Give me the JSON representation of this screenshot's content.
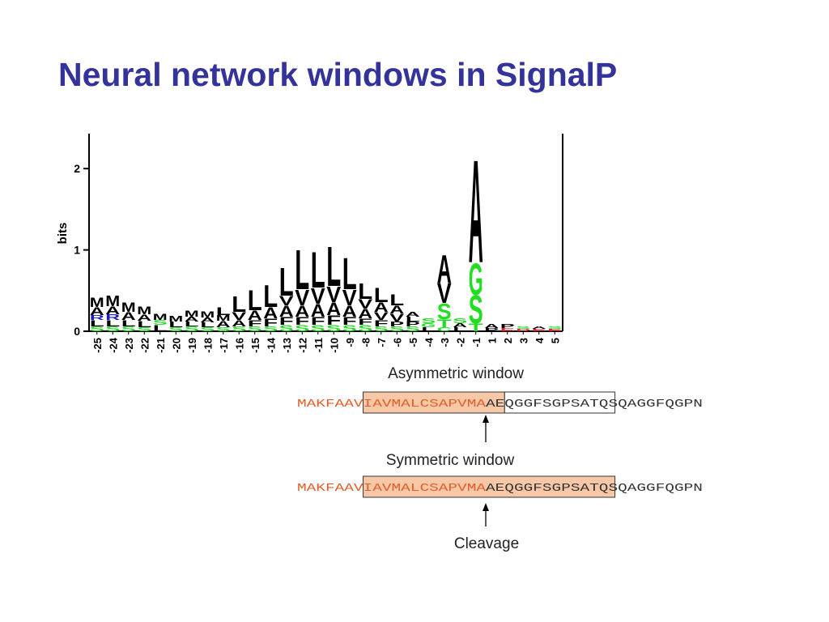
{
  "slide": {
    "title": "Neural network windows in SignalP",
    "asymmetric_label": "Asymmetric window",
    "symmetric_label": "Symmetric window",
    "cleavage_label": "Cleavage",
    "signal_seq": "MAKFAAVIAVMALCSAPVMA",
    "mature_seq": "AEQGGFSGPSATQSQAGGFQGPN"
  },
  "chart_data": {
    "type": "logo",
    "ylabel": "bits",
    "ylim": [
      0,
      2.43
    ],
    "yticks": [
      0,
      1,
      2
    ],
    "colors": {
      "A": "#000000",
      "L": "#000000",
      "M": "#000000",
      "V": "#000000",
      "F": "#000000",
      "P": "#000000",
      "S": "#22dd22",
      "T": "#22dd22",
      "G": "#22dd22",
      "C": "#22dd22",
      "R": "#1a1acc",
      "E": "#dd2222",
      "D": "#dd2222"
    },
    "stacks": [
      {
        "position": "-25",
        "letters": [
          {
            "letter": "S",
            "height": 0.06
          },
          {
            "letter": "L",
            "height": 0.08
          },
          {
            "letter": "R",
            "height": 0.06
          },
          {
            "letter": "A",
            "height": 0.1
          },
          {
            "letter": "M",
            "height": 0.12
          }
        ]
      },
      {
        "position": "-24",
        "letters": [
          {
            "letter": "S",
            "height": 0.06
          },
          {
            "letter": "L",
            "height": 0.08
          },
          {
            "letter": "R",
            "height": 0.07
          },
          {
            "letter": "A",
            "height": 0.1
          },
          {
            "letter": "M",
            "height": 0.13
          }
        ]
      },
      {
        "position": "-23",
        "letters": [
          {
            "letter": "S",
            "height": 0.06
          },
          {
            "letter": "L",
            "height": 0.08
          },
          {
            "letter": "A",
            "height": 0.1
          },
          {
            "letter": "M",
            "height": 0.12
          }
        ]
      },
      {
        "position": "-22",
        "letters": [
          {
            "letter": "S",
            "height": 0.05
          },
          {
            "letter": "L",
            "height": 0.08
          },
          {
            "letter": "A",
            "height": 0.08
          },
          {
            "letter": "M",
            "height": 0.1
          }
        ]
      },
      {
        "position": "-21",
        "letters": [
          {
            "letter": "L",
            "height": 0.08
          },
          {
            "letter": "S",
            "height": 0.06
          },
          {
            "letter": "M",
            "height": 0.08
          }
        ]
      },
      {
        "position": "-20",
        "letters": [
          {
            "letter": "S",
            "height": 0.05
          },
          {
            "letter": "L",
            "height": 0.07
          },
          {
            "letter": "M",
            "height": 0.07
          }
        ]
      },
      {
        "position": "-19",
        "letters": [
          {
            "letter": "S",
            "height": 0.06
          },
          {
            "letter": "L",
            "height": 0.06
          },
          {
            "letter": "A",
            "height": 0.06
          },
          {
            "letter": "M",
            "height": 0.08
          }
        ]
      },
      {
        "position": "-18",
        "letters": [
          {
            "letter": "S",
            "height": 0.05
          },
          {
            "letter": "L",
            "height": 0.06
          },
          {
            "letter": "A",
            "height": 0.06
          },
          {
            "letter": "M",
            "height": 0.08
          }
        ]
      },
      {
        "position": "-17",
        "letters": [
          {
            "letter": "S",
            "height": 0.05
          },
          {
            "letter": "A",
            "height": 0.08
          },
          {
            "letter": "M",
            "height": 0.07
          },
          {
            "letter": "L",
            "height": 0.1
          }
        ]
      },
      {
        "position": "-16",
        "letters": [
          {
            "letter": "S",
            "height": 0.06
          },
          {
            "letter": "A",
            "height": 0.08
          },
          {
            "letter": "V",
            "height": 0.1
          },
          {
            "letter": "L",
            "height": 0.2
          }
        ]
      },
      {
        "position": "-15",
        "letters": [
          {
            "letter": "S",
            "height": 0.06
          },
          {
            "letter": "F",
            "height": 0.08
          },
          {
            "letter": "A",
            "height": 0.12
          },
          {
            "letter": "L",
            "height": 0.25
          }
        ]
      },
      {
        "position": "-14",
        "letters": [
          {
            "letter": "S",
            "height": 0.06
          },
          {
            "letter": "F",
            "height": 0.1
          },
          {
            "letter": "A",
            "height": 0.14
          },
          {
            "letter": "L",
            "height": 0.28
          }
        ]
      },
      {
        "position": "-13",
        "letters": [
          {
            "letter": "S",
            "height": 0.08
          },
          {
            "letter": "F",
            "height": 0.1
          },
          {
            "letter": "A",
            "height": 0.14
          },
          {
            "letter": "V",
            "height": 0.12
          },
          {
            "letter": "L",
            "height": 0.35
          }
        ]
      },
      {
        "position": "-12",
        "letters": [
          {
            "letter": "S",
            "height": 0.08
          },
          {
            "letter": "F",
            "height": 0.1
          },
          {
            "letter": "A",
            "height": 0.14
          },
          {
            "letter": "V",
            "height": 0.2
          },
          {
            "letter": "L",
            "height": 0.5
          }
        ]
      },
      {
        "position": "-11",
        "letters": [
          {
            "letter": "S",
            "height": 0.08
          },
          {
            "letter": "F",
            "height": 0.1
          },
          {
            "letter": "A",
            "height": 0.16
          },
          {
            "letter": "V",
            "height": 0.2
          },
          {
            "letter": "L",
            "height": 0.45
          }
        ]
      },
      {
        "position": "-10",
        "letters": [
          {
            "letter": "S",
            "height": 0.08
          },
          {
            "letter": "F",
            "height": 0.12
          },
          {
            "letter": "A",
            "height": 0.16
          },
          {
            "letter": "V",
            "height": 0.2
          },
          {
            "letter": "L",
            "height": 0.5
          }
        ]
      },
      {
        "position": "-9",
        "letters": [
          {
            "letter": "S",
            "height": 0.08
          },
          {
            "letter": "F",
            "height": 0.1
          },
          {
            "letter": "A",
            "height": 0.14
          },
          {
            "letter": "V",
            "height": 0.2
          },
          {
            "letter": "L",
            "height": 0.4
          }
        ]
      },
      {
        "position": "-8",
        "letters": [
          {
            "letter": "S",
            "height": 0.08
          },
          {
            "letter": "F",
            "height": 0.08
          },
          {
            "letter": "A",
            "height": 0.12
          },
          {
            "letter": "V",
            "height": 0.12
          },
          {
            "letter": "L",
            "height": 0.2
          }
        ]
      },
      {
        "position": "-7",
        "letters": [
          {
            "letter": "S",
            "height": 0.06
          },
          {
            "letter": "F",
            "height": 0.08
          },
          {
            "letter": "V",
            "height": 0.1
          },
          {
            "letter": "A",
            "height": 0.12
          },
          {
            "letter": "L",
            "height": 0.18
          }
        ]
      },
      {
        "position": "-6",
        "letters": [
          {
            "letter": "S",
            "height": 0.06
          },
          {
            "letter": "P",
            "height": 0.06
          },
          {
            "letter": "V",
            "height": 0.1
          },
          {
            "letter": "A",
            "height": 0.1
          },
          {
            "letter": "L",
            "height": 0.14
          }
        ]
      },
      {
        "position": "-5",
        "letters": [
          {
            "letter": "S",
            "height": 0.06
          },
          {
            "letter": "P",
            "height": 0.06
          },
          {
            "letter": "L",
            "height": 0.06
          },
          {
            "letter": "A",
            "height": 0.06
          }
        ]
      },
      {
        "position": "-4",
        "letters": [
          {
            "letter": "L",
            "height": 0.05
          },
          {
            "letter": "G",
            "height": 0.05
          },
          {
            "letter": "S",
            "height": 0.06
          }
        ]
      },
      {
        "position": "-3",
        "letters": [
          {
            "letter": "C",
            "height": 0.05
          },
          {
            "letter": "T",
            "height": 0.1
          },
          {
            "letter": "S",
            "height": 0.2
          },
          {
            "letter": "V",
            "height": 0.25
          },
          {
            "letter": "A",
            "height": 0.35
          }
        ]
      },
      {
        "position": "-2",
        "letters": [
          {
            "letter": "L",
            "height": 0.05
          },
          {
            "letter": "A",
            "height": 0.05
          },
          {
            "letter": "S",
            "height": 0.06
          }
        ]
      },
      {
        "position": "-1",
        "letters": [
          {
            "letter": "T",
            "height": 0.1
          },
          {
            "letter": "S",
            "height": 0.35
          },
          {
            "letter": "G",
            "height": 0.4
          },
          {
            "letter": "A",
            "height": 1.3
          }
        ]
      },
      {
        "position": "1",
        "letters": [
          {
            "letter": "P",
            "height": 0.04
          },
          {
            "letter": "A",
            "height": 0.05
          }
        ]
      },
      {
        "position": "2",
        "letters": [
          {
            "letter": "E",
            "height": 0.04
          },
          {
            "letter": "P",
            "height": 0.05
          }
        ]
      },
      {
        "position": "3",
        "letters": [
          {
            "letter": "D",
            "height": 0.03
          },
          {
            "letter": "S",
            "height": 0.03
          }
        ]
      },
      {
        "position": "4",
        "letters": [
          {
            "letter": "E",
            "height": 0.03
          },
          {
            "letter": "A",
            "height": 0.03
          }
        ]
      },
      {
        "position": "5",
        "letters": [
          {
            "letter": "E",
            "height": 0.03
          },
          {
            "letter": "S",
            "height": 0.03
          }
        ]
      }
    ]
  }
}
